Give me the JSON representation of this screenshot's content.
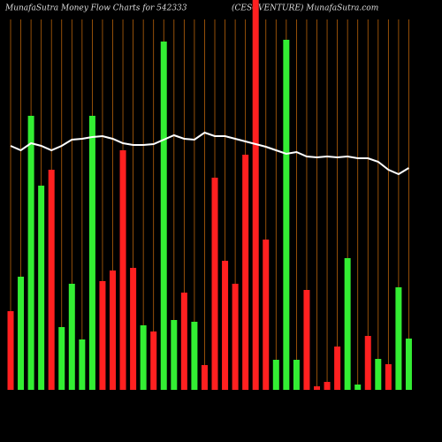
{
  "chart_data": {
    "type": "bar",
    "title": "MunafaSutra  Money Flow  Charts for 542333",
    "subtitle": "(CESCVENTURE) MunafaSutra.com",
    "values": [
      89,
      128,
      310,
      231,
      249,
      71,
      120,
      57,
      310,
      123,
      135,
      271,
      138,
      73,
      66,
      394,
      79,
      110,
      77,
      28,
      240,
      146,
      120,
      266,
      441,
      170,
      34,
      396,
      34,
      113,
      4,
      9,
      49,
      149,
      6,
      61,
      35,
      29,
      116,
      58
    ],
    "colors": [
      "#ff2020",
      "#33ee33",
      "#33ee33",
      "#33ee33",
      "#ff2020",
      "#33ee33",
      "#33ee33",
      "#33ee33",
      "#33ee33",
      "#ff2020",
      "#ff2020",
      "#ff2020",
      "#ff2020",
      "#33ee33",
      "#ff2020",
      "#33ee33",
      "#33ee33",
      "#ff2020",
      "#33ee33",
      "#ff2020",
      "#ff2020",
      "#ff2020",
      "#ff2020",
      "#ff2020",
      "#ff2020",
      "#ff2020",
      "#33ee33",
      "#33ee33",
      "#33ee33",
      "#ff2020",
      "#ff2020",
      "#ff2020",
      "#ff2020",
      "#33ee33",
      "#33ee33",
      "#ff2020",
      "#33ee33",
      "#ff2020",
      "#33ee33",
      "#33ee33"
    ],
    "line": {
      "color": "#ffffff",
      "values": [
        276,
        271,
        279,
        276,
        271,
        276,
        283,
        284,
        286,
        287,
        284,
        279,
        277,
        277,
        278,
        283,
        288,
        284,
        283,
        291,
        287,
        287,
        284,
        281,
        278,
        275,
        271,
        267,
        269,
        264,
        263,
        264,
        263,
        264,
        262,
        262,
        258,
        249,
        244,
        251
      ]
    },
    "grid_color": "#b8620a",
    "ylim": [
      0,
      441
    ]
  }
}
